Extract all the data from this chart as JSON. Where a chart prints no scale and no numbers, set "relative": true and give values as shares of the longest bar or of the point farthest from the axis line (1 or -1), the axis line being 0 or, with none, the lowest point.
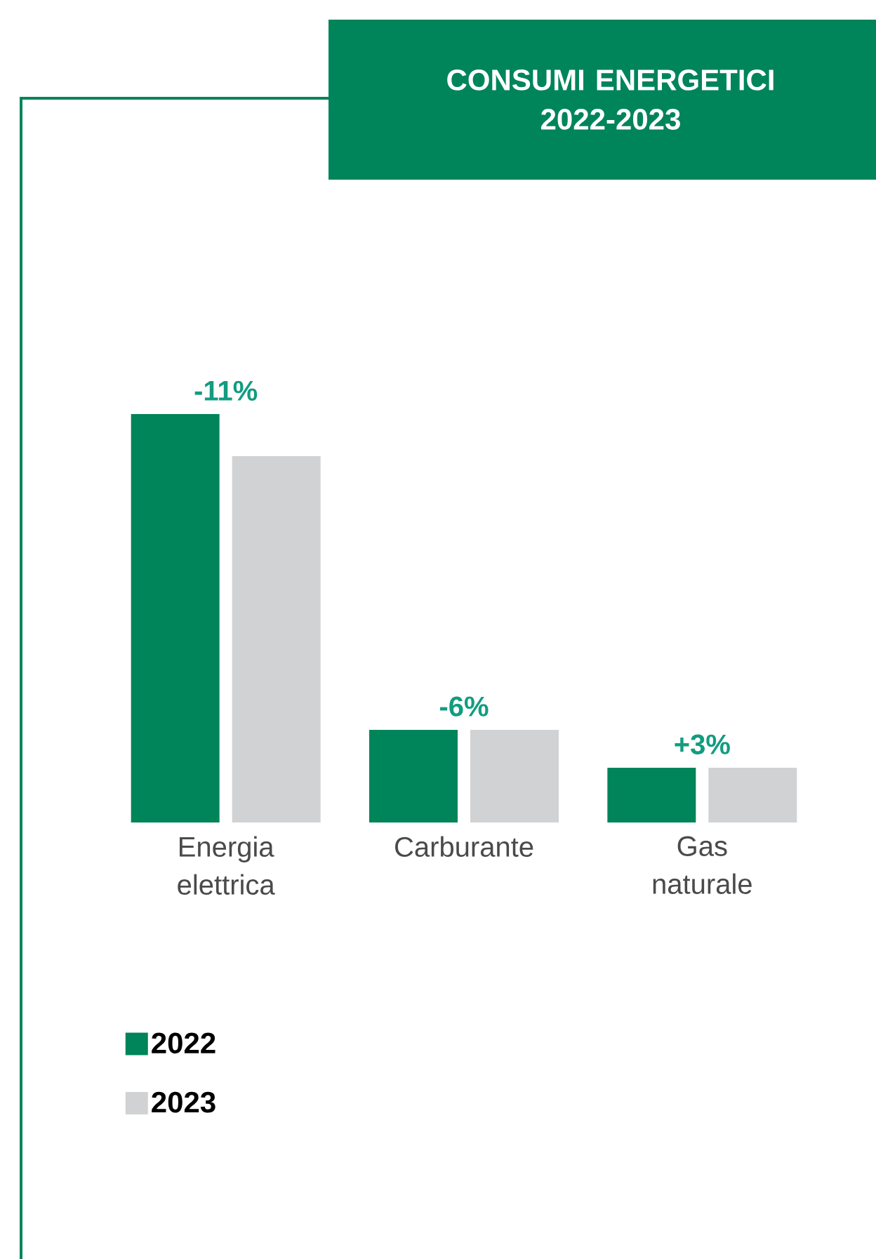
{
  "chart_data": {
    "type": "bar",
    "title": "CONSUMI ENERGETICI 2022-2023",
    "categories": [
      "Energia elettrica",
      "Carburante",
      "Gas naturale"
    ],
    "series": [
      {
        "name": "2022",
        "color": "#00845a",
        "values": [
          1,
          0.227,
          0.134
        ]
      },
      {
        "name": "2023",
        "color": "#d1d2d4",
        "values": [
          0.897,
          0.227,
          0.134
        ]
      }
    ],
    "relative": true,
    "annotations": [
      {
        "text": "-11%",
        "x": "Energia elettrica",
        "y": 1
      },
      {
        "text": "-6%",
        "x": "Carburante",
        "y": 0.227
      },
      {
        "text": "+3%",
        "x": "Gas naturale",
        "y": 0.134
      }
    ],
    "legend": "bottom left"
  }
}
